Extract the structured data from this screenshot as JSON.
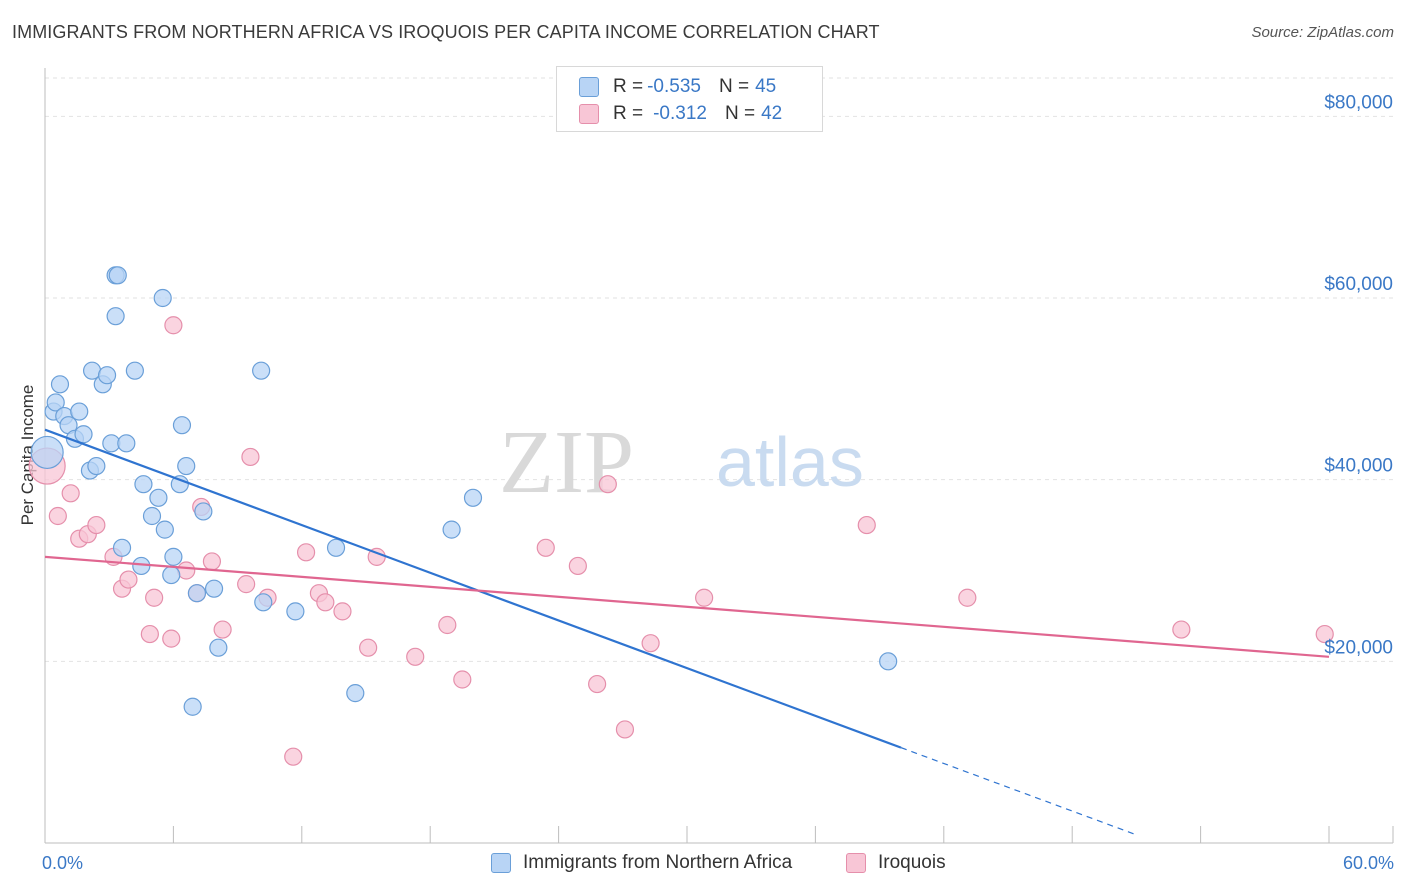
{
  "title": "IMMIGRANTS FROM NORTHERN AFRICA VS IROQUOIS PER CAPITA INCOME CORRELATION CHART",
  "source": "Source: ZipAtlas.com",
  "watermark": {
    "zip": "ZIP",
    "atlas": "atlas"
  },
  "legend_top": {
    "rows": [
      {
        "r_label": "R = ",
        "r_value": "-0.535",
        "n_label": "N = ",
        "n_value": "45"
      },
      {
        "r_label": "R = ",
        "r_value": "-0.312",
        "n_label": "N = ",
        "n_value": "42"
      }
    ]
  },
  "colors": {
    "blue_fill": "#b8d4f5",
    "blue_stroke": "#6a9fd8",
    "blue_line": "#2f74d0",
    "pink_fill": "#f8c6d6",
    "pink_stroke": "#e58fab",
    "pink_line": "#e06690",
    "grid": "#e2e2e2",
    "axis_text": "#3a78c6"
  },
  "chart_data": {
    "type": "scatter",
    "title": "IMMIGRANTS FROM NORTHERN AFRICA VS IROQUOIS PER CAPITA INCOME CORRELATION CHART",
    "xlabel": "",
    "ylabel": "Per Capita Income",
    "xlim": [
      0,
      60
    ],
    "ylim": [
      0,
      84000
    ],
    "x_tick_labels": [
      "0.0%",
      "60.0%"
    ],
    "y_ticks": [
      20000,
      40000,
      60000,
      80000
    ],
    "y_tick_labels": [
      "$20,000",
      "$40,000",
      "$60,000",
      "$80,000"
    ],
    "grid": true,
    "legend": "bottom",
    "series": [
      {
        "name": "Immigrants from Northern Africa",
        "points": [
          [
            0.1,
            43000
          ],
          [
            0.4,
            47500
          ],
          [
            0.5,
            48500
          ],
          [
            0.7,
            50500
          ],
          [
            0.9,
            47000
          ],
          [
            1.1,
            46000
          ],
          [
            1.4,
            44500
          ],
          [
            1.8,
            45000
          ],
          [
            1.6,
            47500
          ],
          [
            2.1,
            41000
          ],
          [
            2.2,
            52000
          ],
          [
            2.4,
            41500
          ],
          [
            2.7,
            50500
          ],
          [
            2.9,
            51500
          ],
          [
            3.1,
            44000
          ],
          [
            3.3,
            58000
          ],
          [
            3.3,
            62500
          ],
          [
            3.8,
            44000
          ],
          [
            3.6,
            32500
          ],
          [
            4.2,
            52000
          ],
          [
            4.5,
            30500
          ],
          [
            4.6,
            39500
          ],
          [
            5.0,
            36000
          ],
          [
            5.3,
            38000
          ],
          [
            5.5,
            60000
          ],
          [
            5.6,
            34500
          ],
          [
            5.9,
            29500
          ],
          [
            6.0,
            31500
          ],
          [
            6.3,
            39500
          ],
          [
            6.4,
            46000
          ],
          [
            6.6,
            41500
          ],
          [
            6.9,
            15000
          ],
          [
            7.1,
            27500
          ],
          [
            7.4,
            36500
          ],
          [
            7.9,
            28000
          ],
          [
            8.1,
            21500
          ],
          [
            10.1,
            52000
          ],
          [
            10.2,
            26500
          ],
          [
            11.7,
            25500
          ],
          [
            13.6,
            32500
          ],
          [
            14.5,
            16500
          ],
          [
            19.0,
            34500
          ],
          [
            20.0,
            38000
          ],
          [
            39.4,
            20000
          ],
          [
            3.4,
            62500
          ]
        ],
        "trend": {
          "x": [
            0,
            40
          ],
          "y": [
            45500,
            10500
          ],
          "dashed_to": [
            51,
            900
          ]
        }
      },
      {
        "name": "Iroquois",
        "points": [
          [
            0.1,
            41500
          ],
          [
            0.6,
            36000
          ],
          [
            1.2,
            38500
          ],
          [
            1.6,
            33500
          ],
          [
            2.0,
            34000
          ],
          [
            2.4,
            35000
          ],
          [
            3.2,
            31500
          ],
          [
            3.6,
            28000
          ],
          [
            3.9,
            29000
          ],
          [
            4.9,
            23000
          ],
          [
            5.1,
            27000
          ],
          [
            5.9,
            22500
          ],
          [
            6.0,
            57000
          ],
          [
            6.6,
            30000
          ],
          [
            7.1,
            27500
          ],
          [
            7.3,
            37000
          ],
          [
            7.8,
            31000
          ],
          [
            8.3,
            23500
          ],
          [
            9.4,
            28500
          ],
          [
            9.6,
            42500
          ],
          [
            10.4,
            27000
          ],
          [
            11.6,
            9500
          ],
          [
            12.2,
            32000
          ],
          [
            12.8,
            27500
          ],
          [
            13.1,
            26500
          ],
          [
            13.9,
            25500
          ],
          [
            15.1,
            21500
          ],
          [
            15.5,
            31500
          ],
          [
            17.3,
            20500
          ],
          [
            18.8,
            24000
          ],
          [
            19.5,
            18000
          ],
          [
            23.4,
            32500
          ],
          [
            24.9,
            30500
          ],
          [
            25.8,
            17500
          ],
          [
            26.3,
            39500
          ],
          [
            27.1,
            12500
          ],
          [
            28.3,
            22000
          ],
          [
            30.8,
            27000
          ],
          [
            38.4,
            35000
          ],
          [
            43.1,
            27000
          ],
          [
            53.1,
            23500
          ],
          [
            59.8,
            23000
          ]
        ],
        "trend": {
          "x": [
            0,
            60
          ],
          "y": [
            31500,
            20500
          ]
        }
      }
    ]
  }
}
